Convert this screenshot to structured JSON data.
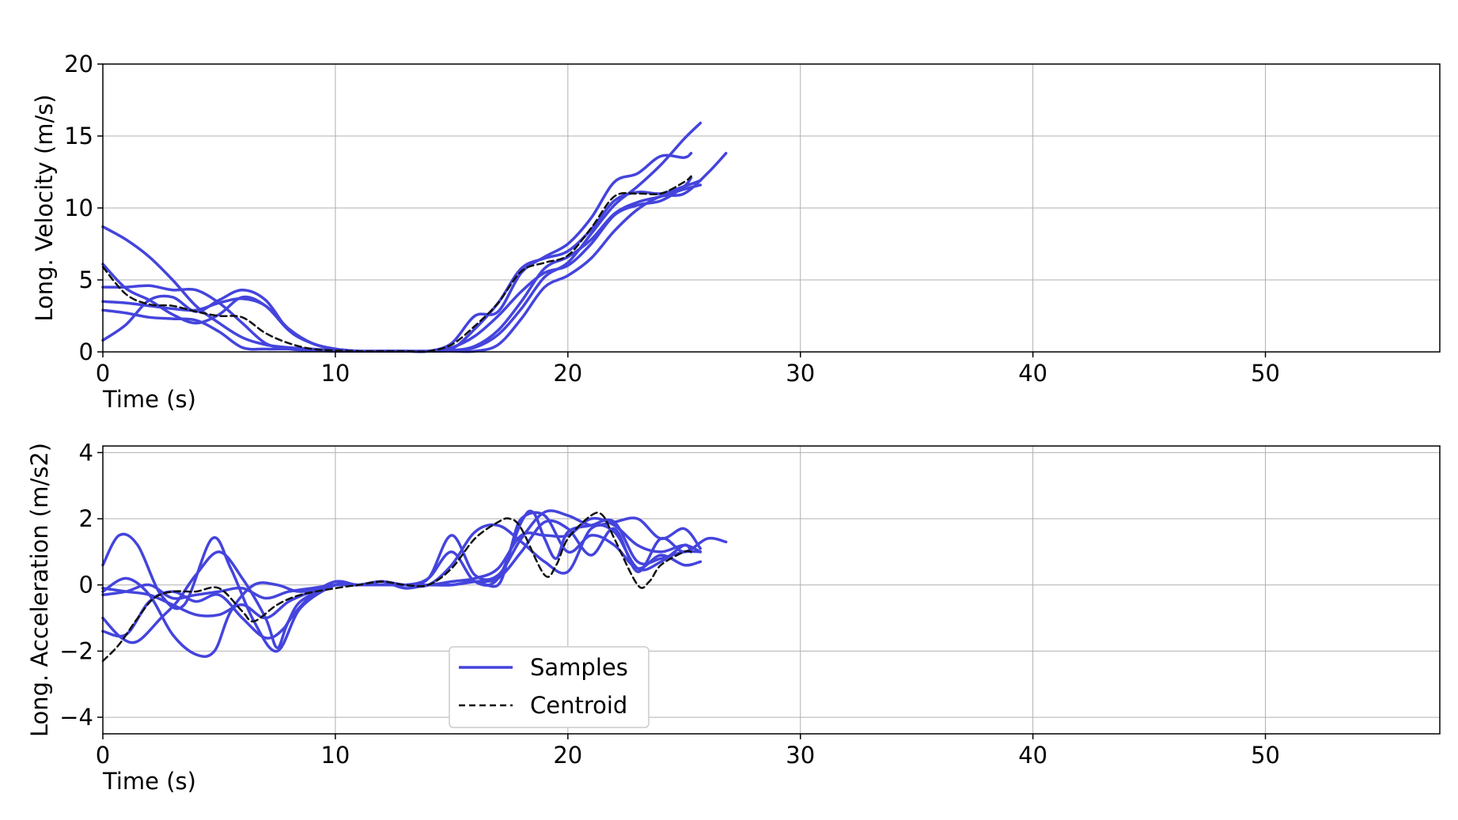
{
  "colors": {
    "samples": "#4444dd",
    "centroid": "#111111",
    "grid": "#b0b0b0",
    "axes": "#000000"
  },
  "legend": {
    "placement": "lower-center-left of bottom panel",
    "entries": [
      "Samples",
      "Centroid"
    ]
  },
  "chart_data": [
    {
      "type": "line",
      "title": "",
      "xlabel": "Time (s)",
      "ylabel": "Long. Velocity (m/s)",
      "xlim": [
        0,
        57.5
      ],
      "ylim": [
        0,
        20
      ],
      "xticks": [
        "0",
        "10",
        "20",
        "30",
        "40",
        "50"
      ],
      "yticks": [
        "0",
        "5",
        "10",
        "15",
        "20"
      ],
      "grid": true,
      "series": [
        {
          "role": "sample",
          "x": [
            0,
            1,
            2,
            3,
            4,
            5,
            6,
            7,
            8,
            9,
            10,
            11,
            12,
            13,
            14,
            15,
            16,
            17,
            18,
            19,
            20,
            21,
            22,
            23,
            24,
            25,
            25.7
          ],
          "y": [
            8.7,
            7.8,
            6.6,
            5.0,
            3.2,
            2.0,
            1.0,
            0.5,
            0.3,
            0.2,
            0.1,
            0.05,
            0.05,
            0.05,
            0.05,
            0.1,
            0.3,
            1.2,
            3.0,
            5.2,
            6.2,
            8.2,
            10.2,
            11.5,
            13.0,
            14.8,
            15.9
          ]
        },
        {
          "role": "sample",
          "x": [
            0,
            1,
            2,
            3,
            4,
            5,
            6,
            7,
            8,
            9,
            10,
            11,
            12,
            13,
            14,
            15,
            16,
            17,
            18,
            19,
            20,
            21,
            22,
            23,
            24,
            25,
            25.3
          ],
          "y": [
            6.1,
            4.4,
            3.6,
            2.6,
            2.0,
            2.6,
            3.8,
            3.2,
            1.5,
            0.6,
            0.2,
            0.05,
            0.05,
            0.05,
            0.05,
            0.6,
            2.5,
            2.8,
            5.5,
            6.6,
            7.5,
            9.3,
            11.8,
            12.4,
            13.6,
            13.5,
            13.8
          ]
        },
        {
          "role": "sample",
          "x": [
            0,
            1,
            2,
            3,
            4,
            5,
            6,
            7,
            8,
            9,
            10,
            11,
            12,
            13,
            14,
            15,
            16,
            17,
            18,
            19,
            20,
            21,
            22,
            23,
            24,
            25,
            25.7
          ],
          "y": [
            4.5,
            4.5,
            4.6,
            4.3,
            4.3,
            3.4,
            2.0,
            0.6,
            0.2,
            0.1,
            0.05,
            0.05,
            0.05,
            0.05,
            0.05,
            0.2,
            1.6,
            3.4,
            5.8,
            6.5,
            7.0,
            8.5,
            10.5,
            11.1,
            11.0,
            11.5,
            11.9
          ]
        },
        {
          "role": "sample",
          "x": [
            0,
            1,
            2,
            3,
            4,
            5,
            6,
            7,
            8,
            9,
            10,
            11,
            12,
            13,
            14,
            15,
            16,
            17,
            18,
            19,
            20,
            21,
            22,
            23,
            24,
            25,
            25.7
          ],
          "y": [
            3.5,
            3.4,
            3.2,
            3.0,
            2.9,
            3.4,
            3.7,
            3.2,
            1.6,
            0.6,
            0.2,
            0.05,
            0.05,
            0.05,
            0.05,
            0.1,
            0.4,
            1.5,
            3.5,
            5.8,
            6.6,
            7.8,
            9.6,
            10.4,
            10.8,
            11.3,
            11.6
          ]
        },
        {
          "role": "sample",
          "x": [
            0,
            1,
            2,
            3,
            4,
            5,
            6,
            7,
            8,
            9,
            10,
            11,
            12,
            13,
            14,
            15,
            16,
            17,
            18,
            19,
            20,
            21,
            22,
            23,
            24,
            25,
            26,
            26.8
          ],
          "y": [
            0.8,
            1.9,
            3.6,
            3.8,
            2.8,
            3.6,
            4.3,
            3.6,
            1.5,
            0.6,
            0.2,
            0.05,
            0.05,
            0.05,
            0.05,
            0.05,
            0.05,
            0.5,
            2.3,
            4.5,
            5.3,
            6.5,
            8.4,
            9.9,
            10.8,
            11.0,
            12.4,
            13.8
          ]
        },
        {
          "role": "sample",
          "x": [
            0,
            1,
            2,
            3,
            4,
            5,
            6,
            7,
            8,
            9,
            10,
            11,
            12,
            13,
            14,
            15,
            16,
            17,
            18,
            19,
            20,
            21,
            22,
            23,
            24,
            25,
            25.3
          ],
          "y": [
            2.9,
            2.7,
            2.4,
            2.3,
            2.2,
            1.4,
            0.3,
            0.2,
            0.2,
            0.1,
            0.05,
            0.05,
            0.05,
            0.05,
            0.05,
            0.3,
            1.1,
            2.5,
            4.2,
            5.5,
            6.0,
            7.5,
            9.5,
            10.2,
            10.5,
            11.5,
            12.1
          ]
        },
        {
          "role": "centroid",
          "x": [
            0,
            1,
            2,
            3,
            4,
            5,
            6,
            7,
            8,
            9,
            10,
            11,
            12,
            13,
            14,
            15,
            16,
            17,
            18,
            19,
            20,
            21,
            22,
            23,
            24,
            25,
            25.3
          ],
          "y": [
            5.9,
            4.0,
            3.3,
            3.2,
            2.8,
            2.5,
            2.4,
            1.3,
            0.6,
            0.2,
            0.1,
            0.05,
            0.05,
            0.05,
            0.05,
            0.5,
            1.8,
            3.4,
            5.6,
            6.2,
            6.7,
            8.6,
            10.8,
            11.0,
            11.0,
            11.8,
            12.2
          ]
        }
      ]
    },
    {
      "type": "line",
      "title": "",
      "xlabel": "Time (s)",
      "ylabel": "Long. Acceleration (m/s2)",
      "xlim": [
        0,
        57.5
      ],
      "ylim": [
        -4.5,
        4.2
      ],
      "xticks": [
        "0",
        "10",
        "20",
        "30",
        "40",
        "50"
      ],
      "yticks": [
        "4",
        "2",
        "0",
        "−2",
        "−4"
      ],
      "yticks_values": [
        4,
        2,
        0,
        -2,
        -4
      ],
      "grid": true,
      "series": [
        {
          "role": "sample",
          "x": [
            0,
            0.8,
            1.5,
            2.5,
            3.2,
            4,
            5,
            6,
            7,
            7.5,
            8,
            9,
            10,
            11,
            12,
            13,
            14,
            15,
            16,
            17,
            18,
            18.5,
            19,
            19.5,
            20,
            21,
            22,
            23,
            24,
            25,
            25.7
          ],
          "y": [
            -1.0,
            -1.6,
            -1.7,
            -1.0,
            -0.5,
            0.3,
            1.0,
            0.2,
            -1.0,
            -1.9,
            -1.1,
            -0.3,
            0.1,
            0.0,
            0.1,
            0.0,
            0.2,
            1.0,
            0.1,
            0.2,
            1.9,
            2.2,
            1.4,
            0.8,
            1.6,
            1.8,
            1.9,
            0.7,
            0.8,
            1.0,
            1.0
          ]
        },
        {
          "role": "sample",
          "x": [
            0,
            0.7,
            1.5,
            2.5,
            3.5,
            4.7,
            5.5,
            6.5,
            7.5,
            8.5,
            10,
            11,
            12,
            13,
            14,
            15,
            16,
            17,
            18,
            19,
            20,
            21,
            22,
            23,
            24,
            25,
            25.7
          ],
          "y": [
            0.6,
            1.5,
            1.2,
            -0.3,
            -0.6,
            1.4,
            0.5,
            -1.1,
            -2.0,
            -0.7,
            0.0,
            0.0,
            0.1,
            0.0,
            0.2,
            1.5,
            0.3,
            0.3,
            1.4,
            2.2,
            2.1,
            1.8,
            1.9,
            2.0,
            1.4,
            1.7,
            1.1
          ]
        },
        {
          "role": "sample",
          "x": [
            0,
            1,
            2,
            3,
            4,
            4.8,
            5.5,
            6.5,
            7.5,
            8.5,
            10,
            11,
            12,
            13,
            14,
            15,
            16,
            17,
            17.5,
            18,
            19,
            20,
            21,
            22,
            23,
            24,
            25,
            25.7
          ],
          "y": [
            -0.2,
            0.2,
            -0.3,
            -1.5,
            -2.1,
            -2.0,
            -0.8,
            0.0,
            0.0,
            -0.2,
            0.0,
            0.0,
            0.1,
            -0.1,
            0.0,
            0.0,
            0.1,
            0.0,
            1.0,
            2.0,
            2.1,
            1.0,
            1.5,
            1.2,
            0.5,
            0.9,
            0.6,
            0.7
          ]
        },
        {
          "role": "sample",
          "x": [
            0,
            1,
            2,
            3,
            4,
            5,
            6,
            7,
            8,
            9,
            10,
            11,
            12,
            13,
            14,
            15,
            16,
            17,
            18,
            19,
            20,
            21,
            22,
            23,
            24,
            25,
            25.7
          ],
          "y": [
            -0.1,
            -0.2,
            -0.3,
            -0.6,
            -0.9,
            -0.9,
            -0.6,
            -1.0,
            -0.5,
            -0.2,
            0.0,
            0.0,
            0.0,
            0.0,
            0.0,
            0.1,
            0.2,
            0.5,
            1.5,
            1.5,
            1.5,
            2.0,
            1.8,
            1.2,
            1.0,
            1.2,
            1.0
          ]
        },
        {
          "role": "sample",
          "x": [
            0,
            1,
            2,
            3,
            4,
            5,
            6,
            7,
            7.8,
            8.5,
            10,
            11,
            12,
            13,
            14,
            15,
            16,
            17,
            18,
            19,
            20,
            21,
            22,
            23,
            24,
            25,
            26,
            26.8
          ],
          "y": [
            -1.4,
            -1.5,
            -0.5,
            -0.2,
            -0.5,
            -0.3,
            -1.0,
            -1.6,
            -1.3,
            -0.5,
            0.0,
            0.0,
            0.0,
            0.0,
            0.0,
            0.0,
            0.1,
            0.2,
            1.0,
            1.9,
            1.7,
            0.9,
            1.7,
            0.4,
            1.4,
            1.0,
            1.4,
            1.3
          ]
        },
        {
          "role": "sample",
          "x": [
            0,
            1,
            2,
            3,
            4,
            5,
            6,
            7,
            8,
            9,
            10,
            11,
            12,
            13,
            14,
            15,
            16,
            17,
            18,
            19,
            20,
            21,
            22,
            23,
            24,
            25,
            25.3
          ],
          "y": [
            -0.3,
            -0.2,
            0.0,
            -0.4,
            -0.3,
            -0.2,
            -0.1,
            -0.4,
            -0.2,
            -0.1,
            0.0,
            0.0,
            0.1,
            0.0,
            0.0,
            0.6,
            1.6,
            1.8,
            1.3,
            0.7,
            0.4,
            1.7,
            1.6,
            0.5,
            0.7,
            1.2,
            1.0
          ]
        },
        {
          "role": "centroid",
          "x": [
            0,
            0.7,
            1.5,
            2.2,
            3,
            4,
            5,
            6,
            6.5,
            7.5,
            8.5,
            10,
            11,
            12,
            13,
            14,
            15,
            16,
            17,
            17.5,
            18,
            19,
            19.5,
            20,
            21,
            21.5,
            22,
            23,
            23.5,
            24,
            25,
            25.3
          ],
          "y": [
            -2.3,
            -1.8,
            -1.0,
            -0.4,
            -0.2,
            -0.2,
            -0.1,
            -0.8,
            -1.1,
            -0.6,
            -0.3,
            -0.1,
            0.0,
            0.1,
            0.0,
            0.0,
            0.5,
            1.4,
            1.9,
            2.0,
            1.7,
            0.3,
            0.6,
            1.4,
            2.1,
            2.1,
            1.4,
            0.0,
            0.1,
            0.6,
            1.0,
            1.0
          ]
        }
      ]
    }
  ]
}
